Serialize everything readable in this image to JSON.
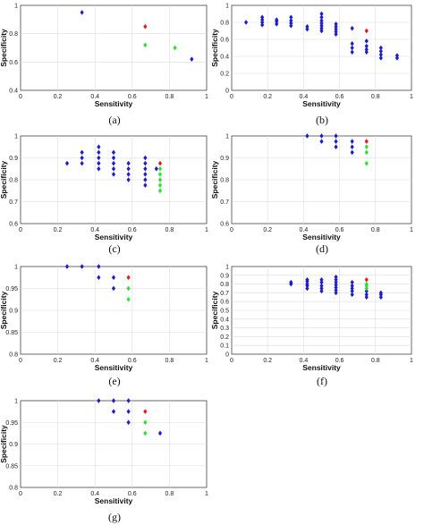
{
  "colors": {
    "blue": "#1c1cc8",
    "red": "#e01b1b",
    "green": "#2ee02e",
    "grid": "#dcdcdc",
    "axis": "#444444"
  },
  "chart_data": [
    {
      "type": "scatter",
      "caption": "(a)",
      "xlabel": "Sensitivity",
      "ylabel": "Specificity",
      "xlim": [
        0,
        1
      ],
      "ylim": [
        0.4,
        1
      ],
      "xticks": [
        "0",
        "0.2",
        "0.4",
        "0.6",
        "0.8",
        "1"
      ],
      "yticks": [
        "0.4",
        "0.6",
        "0.8",
        "1"
      ],
      "grid": true,
      "series": [
        {
          "color": "blue",
          "points": [
            [
              0.33,
              0.95
            ],
            [
              0.92,
              0.62
            ]
          ]
        },
        {
          "color": "red",
          "points": [
            [
              0.67,
              0.85
            ]
          ]
        },
        {
          "color": "green",
          "points": [
            [
              0.67,
              0.72
            ],
            [
              0.83,
              0.7
            ]
          ]
        }
      ]
    },
    {
      "type": "scatter",
      "caption": "(b)",
      "xlabel": "Sensitivity",
      "ylabel": "Specificity",
      "xlim": [
        0,
        1
      ],
      "ylim": [
        0,
        1
      ],
      "xticks": [
        "0",
        "0.2",
        "0.4",
        "0.6",
        "0.8",
        "1"
      ],
      "yticks": [
        "0",
        "0.2",
        "0.4",
        "0.6",
        "0.8",
        "1"
      ],
      "grid": true,
      "series": [
        {
          "color": "blue",
          "points": [
            [
              0.08,
              0.8
            ],
            [
              0.17,
              0.77
            ],
            [
              0.17,
              0.8
            ],
            [
              0.17,
              0.83
            ],
            [
              0.17,
              0.86
            ],
            [
              0.25,
              0.78
            ],
            [
              0.25,
              0.81
            ],
            [
              0.25,
              0.83
            ],
            [
              0.33,
              0.76
            ],
            [
              0.33,
              0.79
            ],
            [
              0.33,
              0.82
            ],
            [
              0.33,
              0.86
            ],
            [
              0.42,
              0.72
            ],
            [
              0.42,
              0.75
            ],
            [
              0.5,
              0.7
            ],
            [
              0.5,
              0.73
            ],
            [
              0.5,
              0.76
            ],
            [
              0.5,
              0.79
            ],
            [
              0.5,
              0.82
            ],
            [
              0.5,
              0.86
            ],
            [
              0.5,
              0.9
            ],
            [
              0.58,
              0.66
            ],
            [
              0.58,
              0.69
            ],
            [
              0.58,
              0.72
            ],
            [
              0.58,
              0.75
            ],
            [
              0.58,
              0.78
            ],
            [
              0.67,
              0.45
            ],
            [
              0.67,
              0.5
            ],
            [
              0.67,
              0.55
            ],
            [
              0.67,
              0.73
            ],
            [
              0.75,
              0.45
            ],
            [
              0.75,
              0.48
            ],
            [
              0.75,
              0.52
            ],
            [
              0.75,
              0.58
            ],
            [
              0.83,
              0.38
            ],
            [
              0.83,
              0.42
            ],
            [
              0.83,
              0.46
            ],
            [
              0.83,
              0.5
            ],
            [
              0.92,
              0.38
            ],
            [
              0.92,
              0.41
            ]
          ]
        },
        {
          "color": "red",
          "points": [
            [
              0.75,
              0.7
            ]
          ]
        }
      ]
    },
    {
      "type": "scatter",
      "caption": "(c)",
      "xlabel": "Sensitivity",
      "ylabel": "Specificity",
      "xlim": [
        0,
        1
      ],
      "ylim": [
        0.6,
        1
      ],
      "xticks": [
        "0",
        "0.2",
        "0.4",
        "0.6",
        "0.8",
        "1"
      ],
      "yticks": [
        "0.6",
        "0.7",
        "0.8",
        "0.9",
        "1"
      ],
      "grid": true,
      "series": [
        {
          "color": "blue",
          "points": [
            [
              0.25,
              0.875
            ],
            [
              0.33,
              0.875
            ],
            [
              0.33,
              0.9
            ],
            [
              0.33,
              0.925
            ],
            [
              0.42,
              0.85
            ],
            [
              0.42,
              0.875
            ],
            [
              0.42,
              0.9
            ],
            [
              0.42,
              0.925
            ],
            [
              0.42,
              0.95
            ],
            [
              0.5,
              0.825
            ],
            [
              0.5,
              0.85
            ],
            [
              0.5,
              0.875
            ],
            [
              0.5,
              0.9
            ],
            [
              0.5,
              0.925
            ],
            [
              0.58,
              0.8
            ],
            [
              0.58,
              0.825
            ],
            [
              0.58,
              0.85
            ],
            [
              0.58,
              0.875
            ],
            [
              0.67,
              0.775
            ],
            [
              0.67,
              0.8
            ],
            [
              0.67,
              0.825
            ],
            [
              0.67,
              0.85
            ],
            [
              0.67,
              0.875
            ],
            [
              0.67,
              0.9
            ],
            [
              0.73,
              0.85
            ]
          ]
        },
        {
          "color": "red",
          "points": [
            [
              0.75,
              0.875
            ]
          ]
        },
        {
          "color": "green",
          "points": [
            [
              0.75,
              0.75
            ],
            [
              0.75,
              0.775
            ],
            [
              0.75,
              0.8
            ],
            [
              0.75,
              0.825
            ],
            [
              0.75,
              0.85
            ]
          ]
        }
      ]
    },
    {
      "type": "scatter",
      "caption": "(d)",
      "xlabel": "Sensitivity",
      "ylabel": "Specificity",
      "xlim": [
        0,
        1
      ],
      "ylim": [
        0.6,
        1
      ],
      "xticks": [
        "0",
        "0.2",
        "0.4",
        "0.6",
        "0.8",
        "1"
      ],
      "yticks": [
        "0.6",
        "0.7",
        "0.8",
        "0.9",
        "1"
      ],
      "grid": true,
      "series": [
        {
          "color": "blue",
          "points": [
            [
              0.42,
              1.0
            ],
            [
              0.5,
              0.975
            ],
            [
              0.5,
              1.0
            ],
            [
              0.58,
              0.95
            ],
            [
              0.58,
              0.975
            ],
            [
              0.58,
              1.0
            ],
            [
              0.67,
              0.925
            ],
            [
              0.67,
              0.95
            ],
            [
              0.67,
              0.975
            ]
          ]
        },
        {
          "color": "red",
          "points": [
            [
              0.75,
              0.975
            ]
          ]
        },
        {
          "color": "green",
          "points": [
            [
              0.75,
              0.875
            ],
            [
              0.75,
              0.925
            ],
            [
              0.75,
              0.95
            ]
          ]
        }
      ]
    },
    {
      "type": "scatter",
      "caption": "(e)",
      "xlabel": "Sensitivity",
      "ylabel": "Specificity",
      "xlim": [
        0,
        1
      ],
      "ylim": [
        0.8,
        1
      ],
      "xticks": [
        "0",
        "0.2",
        "0.4",
        "0.6",
        "0.8",
        "1"
      ],
      "yticks": [
        "0.8",
        "0.85",
        "0.9",
        "0.95",
        "1"
      ],
      "grid": true,
      "series": [
        {
          "color": "blue",
          "points": [
            [
              0.25,
              1.0
            ],
            [
              0.33,
              1.0
            ],
            [
              0.42,
              1.0
            ],
            [
              0.42,
              0.975
            ],
            [
              0.5,
              0.95
            ],
            [
              0.5,
              0.975
            ]
          ]
        },
        {
          "color": "red",
          "points": [
            [
              0.58,
              0.975
            ]
          ]
        },
        {
          "color": "green",
          "points": [
            [
              0.58,
              0.925
            ],
            [
              0.58,
              0.95
            ]
          ]
        }
      ]
    },
    {
      "type": "scatter",
      "caption": "(f)",
      "xlabel": "Sensitivity",
      "ylabel": "Specificity",
      "xlim": [
        0,
        1
      ],
      "ylim": [
        0,
        1
      ],
      "xticks": [
        "0",
        "0.2",
        "0.4",
        "0.6",
        "0.8",
        "1"
      ],
      "yticks": [
        "0",
        "0.1",
        "0.2",
        "0.3",
        "0.4",
        "0.5",
        "0.6",
        "0.7",
        "0.8",
        "0.9",
        "1"
      ],
      "grid": true,
      "series": [
        {
          "color": "blue",
          "points": [
            [
              0.33,
              0.8
            ],
            [
              0.33,
              0.82
            ],
            [
              0.42,
              0.75
            ],
            [
              0.42,
              0.78
            ],
            [
              0.42,
              0.8
            ],
            [
              0.42,
              0.83
            ],
            [
              0.42,
              0.85
            ],
            [
              0.5,
              0.72
            ],
            [
              0.5,
              0.75
            ],
            [
              0.5,
              0.78
            ],
            [
              0.5,
              0.82
            ],
            [
              0.5,
              0.85
            ],
            [
              0.58,
              0.7
            ],
            [
              0.58,
              0.73
            ],
            [
              0.58,
              0.76
            ],
            [
              0.58,
              0.79
            ],
            [
              0.58,
              0.82
            ],
            [
              0.58,
              0.85
            ],
            [
              0.58,
              0.88
            ],
            [
              0.67,
              0.68
            ],
            [
              0.67,
              0.72
            ],
            [
              0.67,
              0.75
            ],
            [
              0.67,
              0.78
            ],
            [
              0.67,
              0.82
            ],
            [
              0.75,
              0.65
            ],
            [
              0.75,
              0.68
            ],
            [
              0.75,
              0.72
            ],
            [
              0.83,
              0.65
            ],
            [
              0.83,
              0.68
            ],
            [
              0.83,
              0.7
            ]
          ]
        },
        {
          "color": "red",
          "points": [
            [
              0.75,
              0.85
            ]
          ]
        },
        {
          "color": "green",
          "points": [
            [
              0.75,
              0.75
            ],
            [
              0.75,
              0.78
            ],
            [
              0.75,
              0.8
            ]
          ]
        }
      ]
    },
    {
      "type": "scatter",
      "caption": "(g)",
      "xlabel": "Sensitivity",
      "ylabel": "Specificity",
      "xlim": [
        0,
        1
      ],
      "ylim": [
        0.8,
        1
      ],
      "xticks": [
        "0",
        "0.2",
        "0.4",
        "0.6",
        "0.8",
        "1"
      ],
      "yticks": [
        "0.8",
        "0.85",
        "0.9",
        "0.95",
        "1"
      ],
      "grid": true,
      "series": [
        {
          "color": "blue",
          "points": [
            [
              0.42,
              1.0
            ],
            [
              0.5,
              0.975
            ],
            [
              0.5,
              1.0
            ],
            [
              0.58,
              0.95
            ],
            [
              0.58,
              0.975
            ],
            [
              0.58,
              1.0
            ],
            [
              0.75,
              0.925
            ]
          ]
        },
        {
          "color": "red",
          "points": [
            [
              0.67,
              0.975
            ]
          ]
        },
        {
          "color": "green",
          "points": [
            [
              0.67,
              0.925
            ],
            [
              0.67,
              0.95
            ]
          ]
        }
      ]
    }
  ]
}
